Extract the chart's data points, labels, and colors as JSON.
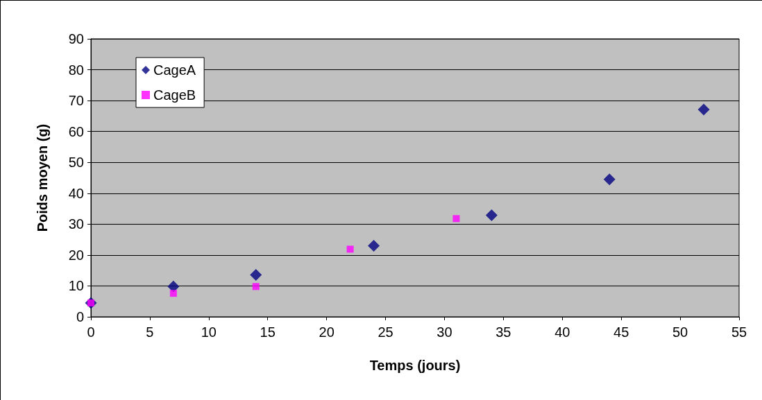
{
  "chart_data": {
    "type": "scatter",
    "xlabel": "Temps (jours)",
    "ylabel": "Poids moyen (g)",
    "xlim": [
      0,
      55
    ],
    "xticks": [
      0,
      5,
      10,
      15,
      20,
      25,
      30,
      35,
      40,
      45,
      50,
      55
    ],
    "ylim": [
      0,
      90
    ],
    "yticks": [
      0,
      10,
      20,
      30,
      40,
      50,
      60,
      70,
      80,
      90
    ],
    "grid": "y",
    "legend": "top left",
    "series": [
      {
        "name": "CageA",
        "color": "#000080",
        "marker": "diamond",
        "x": [
          0,
          7,
          14,
          24,
          34,
          44,
          52
        ],
        "values": [
          4.5,
          9.8,
          13.6,
          23,
          32.9,
          44.5,
          67.1
        ]
      },
      {
        "name": "CageB",
        "color": "#ff00ff",
        "marker": "square",
        "x": [
          0,
          7,
          14,
          22,
          31
        ],
        "values": [
          4.5,
          7.6,
          9.8,
          21.9,
          31.8
        ]
      }
    ]
  }
}
